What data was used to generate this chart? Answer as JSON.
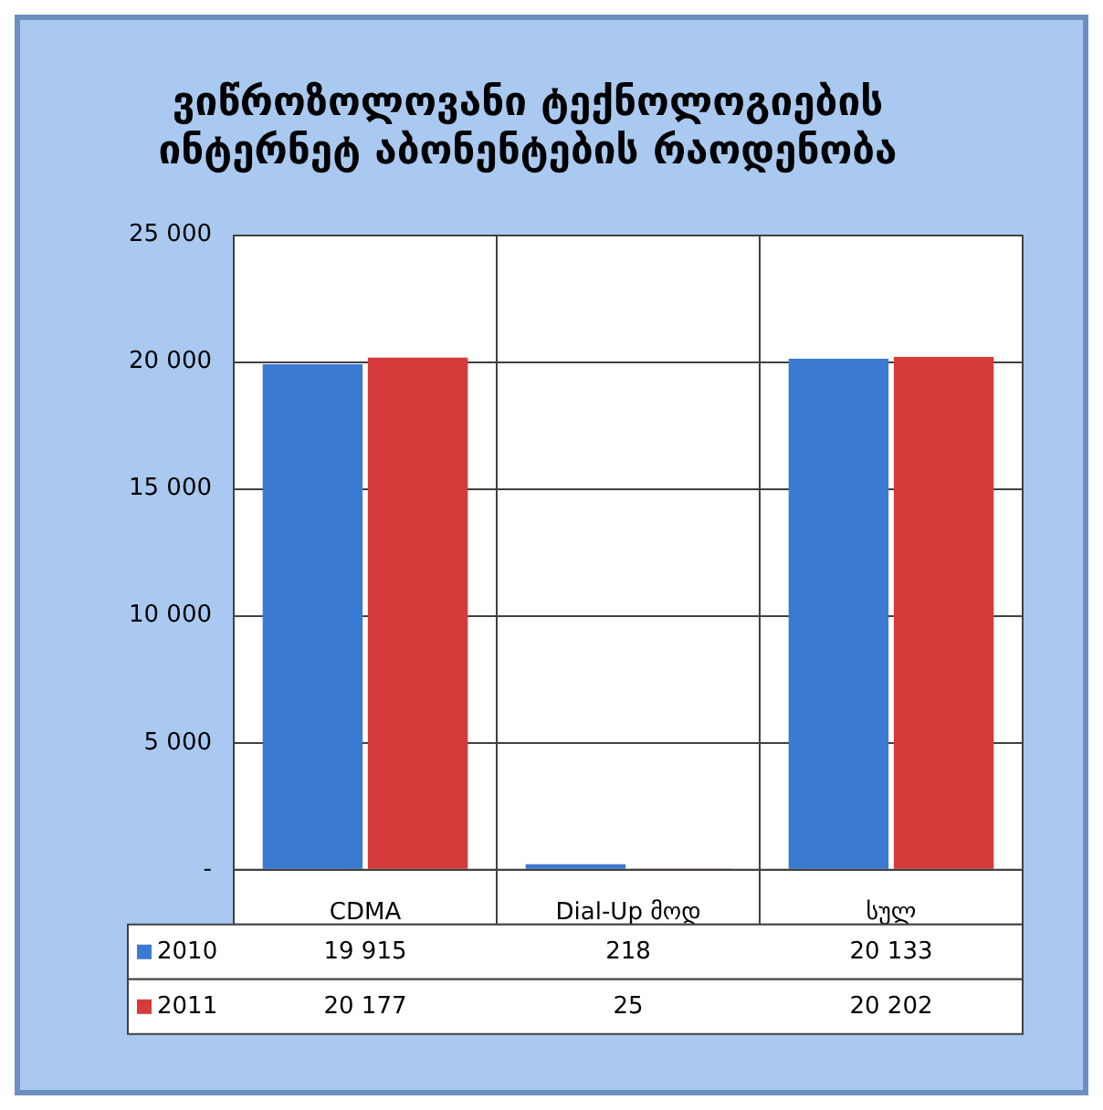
{
  "chart_data": {
    "type": "bar",
    "title": "ვიწროზოლოვანი ტექნოლოგიების\nინტერნეტ აბონენტების რაოდენობა",
    "categories": [
      "CDMA",
      "Dial-Up მოდ",
      "სულ"
    ],
    "series": [
      {
        "name": "2010",
        "color": "#3b7ad2",
        "values": [
          19915,
          218,
          20133
        ]
      },
      {
        "name": "2011",
        "color": "#d63b3b",
        "values": [
          20177,
          25,
          20202
        ]
      }
    ],
    "ylim": [
      0,
      25000
    ],
    "yticks": [
      {
        "value": 0,
        "label": "-"
      },
      {
        "value": 5000,
        "label": "5 000"
      },
      {
        "value": 10000,
        "label": "10 000"
      },
      {
        "value": 15000,
        "label": "15 000"
      },
      {
        "value": 20000,
        "label": "20 000"
      },
      {
        "value": 25000,
        "label": "25 000"
      }
    ],
    "grid": true,
    "data_labels": true,
    "legend": "bottom"
  }
}
